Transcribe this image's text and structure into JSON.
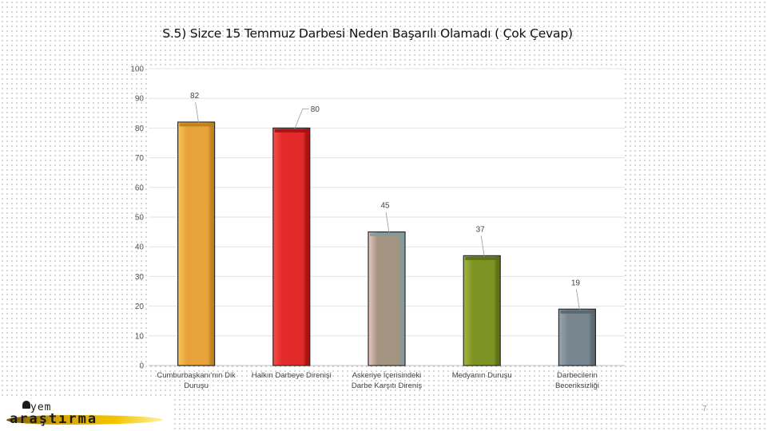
{
  "slide": {
    "title": "S.5) Sizce 15 Temmuz Darbesi Neden Başarılı Olamadı ( Çok Çevap)",
    "page_number": "7",
    "logo_top": "yem",
    "logo_bottom": "araştırma"
  },
  "chart_data": {
    "type": "bar",
    "title": "S.5) Sizce 15 Temmuz Darbesi Neden Başarılı Olamadı ( Çok Çevap)",
    "xlabel": "",
    "ylabel": "",
    "ylim": [
      0,
      100
    ],
    "yticks": [
      0,
      10,
      20,
      30,
      40,
      50,
      60,
      70,
      80,
      90,
      100
    ],
    "grid": true,
    "categories": [
      [
        "Cumburbaşkanı'nın Dik",
        "Duruşu"
      ],
      [
        "Halkın Darbeye Direnişi"
      ],
      [
        "Askeriye İçerisindeki",
        "Darbe Karşıtı Direniş"
      ],
      [
        "Medyanın Duruşu"
      ],
      [
        "Darbecilerin",
        "Beceriksizliği"
      ]
    ],
    "values": [
      82,
      80,
      45,
      37,
      19
    ],
    "data_labels": [
      "82",
      "80",
      "45",
      "37",
      "19"
    ],
    "colors": [
      {
        "fill": "#e8a23a",
        "light": "#f6c55a",
        "dark": "#b97d16"
      },
      {
        "fill": "#e32a2a",
        "light": "#f2504a",
        "dark": "#9c1010"
      },
      {
        "fill": "#a49482",
        "light": "#e9c8c6",
        "dark": "#7e9ca0"
      },
      {
        "fill": "#7d9425",
        "light": "#a4b83a",
        "dark": "#586c12"
      },
      {
        "fill": "#788690",
        "light": "#9aa6ad",
        "dark": "#56636b"
      }
    ]
  }
}
